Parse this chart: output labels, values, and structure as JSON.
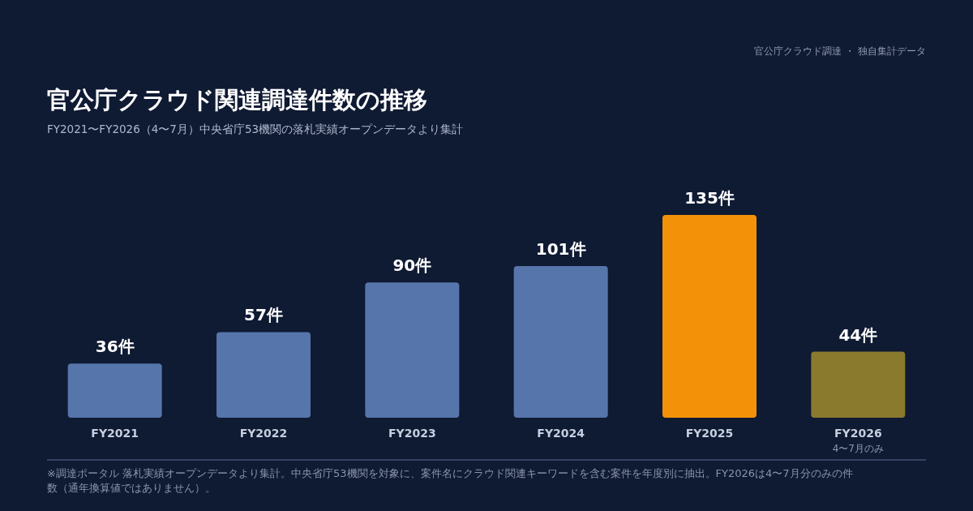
{
  "chart_data": {
    "type": "bar",
    "title": "官公庁クラウド関連調達件数の推移",
    "subtitle": "FY2021〜FY2026（4〜7月）中央省庁53機関の落札実績オープンデータより集計",
    "categories": [
      "FY2021",
      "FY2022",
      "FY2023",
      "FY2024",
      "FY2025",
      "FY2026"
    ],
    "values": [
      36,
      57,
      90,
      101,
      135,
      44
    ],
    "colors": [
      "#5675ab",
      "#5675ab",
      "#5675ab",
      "#5675ab",
      "#f39208",
      "#8a7a2e"
    ],
    "value_labels": [
      "36件",
      "57件",
      "90件",
      "101件",
      "135件",
      "44件"
    ],
    "annotations": [
      "官公庁クラウド調達 ・ 独自集計データ",
      "4〜7月のみ",
      "※調達ポータル 落札実績オープンデータより集計。中央省庁53機関を対象に、案件名にクラウド関連キーワードを含む案件を年度別に抽出。FY2026は4〜7月分のみの件数（通年換算値ではありません）。"
    ]
  }
}
